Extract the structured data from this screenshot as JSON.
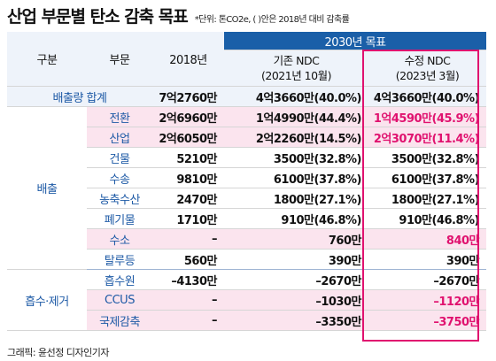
{
  "title": "산업 부문별 탄소 감축 목표",
  "note": "*단위: 톤CO2e, ( )안은 2018년 대비 감축률",
  "header": {
    "col_group": "구분",
    "col_sector": "부문",
    "col_2018": "2018년",
    "col_2030": "2030년 목표",
    "existing_line1": "기존 NDC",
    "existing_line2": "(2021년 10월)",
    "revised_line1": "수정 NDC",
    "revised_line2": "(2023년 3월)"
  },
  "groups": {
    "emission": "배출",
    "absorption": "흡수·제거"
  },
  "rows": [
    {
      "sector": "배출량 합계",
      "y2018": "7억2760만",
      "existing": "4억3660만(40.0%)",
      "revised": "4억3660만(40.0%)"
    },
    {
      "sector": "전환",
      "y2018": "2억6960만",
      "existing": "1억4990만(44.4%)",
      "revised": "1억4590만(45.9%)"
    },
    {
      "sector": "산업",
      "y2018": "2억6050만",
      "existing": "2억2260만(14.5%)",
      "revised": "2억3070만(11.4%)"
    },
    {
      "sector": "건물",
      "y2018": "5210만",
      "existing": "3500만(32.8%)",
      "revised": "3500만(32.8%)"
    },
    {
      "sector": "수송",
      "y2018": "9810만",
      "existing": "6100만(37.8%)",
      "revised": "6100만(37.8%)"
    },
    {
      "sector": "농축수산",
      "y2018": "2470만",
      "existing": "1800만(27.1%)",
      "revised": "1800만(27.1%)"
    },
    {
      "sector": "폐기물",
      "y2018": "1710만",
      "existing": "910만(46.8%)",
      "revised": "910만(46.8%)"
    },
    {
      "sector": "수소",
      "y2018": "–",
      "existing": "760만",
      "revised": "840만"
    },
    {
      "sector": "탈루등",
      "y2018": "560만",
      "existing": "390만",
      "revised": "390만"
    },
    {
      "sector": "흡수원",
      "y2018": "–4130만",
      "existing": "–2670만",
      "revised": "–2670만"
    },
    {
      "sector": "CCUS",
      "y2018": "–",
      "existing": "–1030만",
      "revised": "–1120만"
    },
    {
      "sector": "국제감축",
      "y2018": "–",
      "existing": "–3350만",
      "revised": "–3750만"
    }
  ],
  "footer": "그래픽: 윤선정 디자인기자",
  "chart_data": {
    "type": "table",
    "title": "산업 부문별 탄소 감축 목표",
    "columns": [
      "구분",
      "부문",
      "2018년",
      "기존 NDC (2021년 10월)",
      "수정 NDC (2023년 3월)"
    ],
    "rows": [
      [
        "",
        "배출량 합계",
        "7억2760만",
        "4억3660만(40.0%)",
        "4억3660만(40.0%)"
      ],
      [
        "배출",
        "전환",
        "2억6960만",
        "1억4990만(44.4%)",
        "1억4590만(45.9%)"
      ],
      [
        "배출",
        "산업",
        "2억6050만",
        "2억2260만(14.5%)",
        "2억3070만(11.4%)"
      ],
      [
        "배출",
        "건물",
        "5210만",
        "3500만(32.8%)",
        "3500만(32.8%)"
      ],
      [
        "배출",
        "수송",
        "9810만",
        "6100만(37.8%)",
        "6100만(37.8%)"
      ],
      [
        "배출",
        "농축수산",
        "2470만",
        "1800만(27.1%)",
        "1800만(27.1%)"
      ],
      [
        "배출",
        "폐기물",
        "1710만",
        "910만(46.8%)",
        "910만(46.8%)"
      ],
      [
        "배출",
        "수소",
        "–",
        "760만",
        "840만"
      ],
      [
        "배출",
        "탈루등",
        "560만",
        "390만",
        "390만"
      ],
      [
        "흡수·제거",
        "흡수원",
        "–4130만",
        "–2670만",
        "–2670만"
      ],
      [
        "흡수·제거",
        "CCUS",
        "–",
        "–1030만",
        "–1120만"
      ],
      [
        "흡수·제거",
        "국제감축",
        "–",
        "–3350만",
        "–3750만"
      ]
    ],
    "highlighted_column": "수정 NDC (2023년 3월)",
    "changed_rows": [
      "전환",
      "산업",
      "수소",
      "CCUS",
      "국제감축"
    ],
    "colors": {
      "header": "#1a5fa8",
      "accent": "#e0126f",
      "sector_text": "#1e5aa6",
      "highlight_row": "#fbe4ee"
    }
  }
}
